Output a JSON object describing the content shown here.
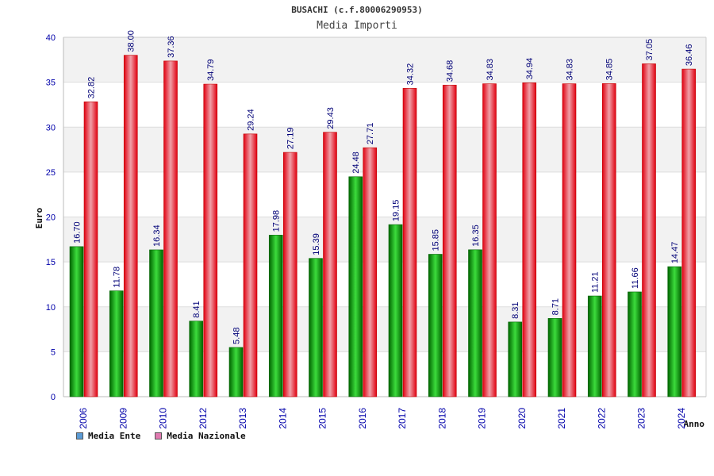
{
  "title": "BUSACHI (c.f.80006290953)",
  "subtitle": "Media Importi",
  "legend": {
    "ente_label": "Media Ente",
    "nazionale_label": "Media Nazionale",
    "ente_swatch": "#5b9bd5",
    "nazionale_swatch": "#e07ab0"
  },
  "chart_data": {
    "type": "bar",
    "ylabel": "Euro",
    "xlabel": "Anno",
    "ylim": [
      0,
      40
    ],
    "yticks": [
      0,
      5,
      10,
      15,
      20,
      25,
      30,
      35,
      40
    ],
    "grid": true,
    "categories": [
      "2006",
      "2009",
      "2010",
      "2012",
      "2013",
      "2014",
      "2015",
      "2016",
      "2017",
      "2018",
      "2019",
      "2020",
      "2021",
      "2022",
      "2023",
      "2024"
    ],
    "series": [
      {
        "name": "Media Ente",
        "color": "#00b000",
        "values": [
          16.7,
          11.78,
          16.34,
          8.41,
          5.48,
          17.98,
          15.39,
          24.48,
          19.15,
          15.85,
          16.35,
          8.31,
          8.71,
          11.21,
          11.66,
          14.47
        ]
      },
      {
        "name": "Media Nazionale",
        "color": "#e00000",
        "values": [
          32.82,
          38.0,
          37.36,
          34.79,
          29.24,
          27.19,
          29.43,
          27.71,
          34.32,
          34.68,
          34.83,
          34.94,
          34.83,
          34.85,
          37.05,
          36.46
        ]
      }
    ]
  }
}
